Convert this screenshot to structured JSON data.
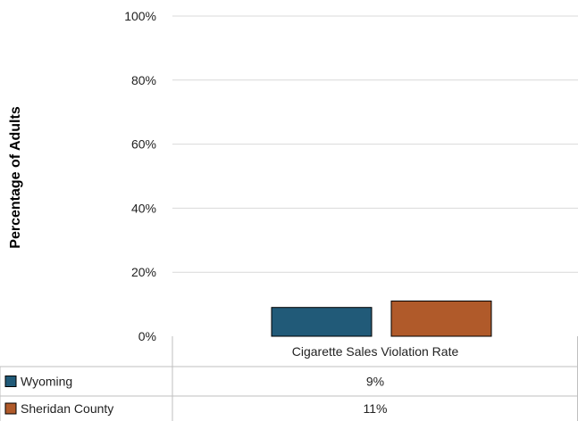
{
  "chart_data": {
    "type": "bar",
    "categories": [
      "Cigarette Sales Violation Rate"
    ],
    "series": [
      {
        "name": "Wyoming",
        "values": [
          9
        ],
        "color": "#215a78",
        "label": "9%"
      },
      {
        "name": "Sheridan County",
        "values": [
          11
        ],
        "color": "#b05a2a",
        "label": "11%"
      }
    ],
    "ylabel": "Percentage of Adults",
    "ylim": [
      0,
      100
    ],
    "yticks": [
      {
        "value": 0,
        "label": "0%"
      },
      {
        "value": 20,
        "label": "20%"
      },
      {
        "value": 40,
        "label": "40%"
      },
      {
        "value": 60,
        "label": "60%"
      },
      {
        "value": 80,
        "label": "80%"
      },
      {
        "value": 100,
        "label": "100%"
      }
    ],
    "grid": true,
    "legend": "data-table-below"
  }
}
